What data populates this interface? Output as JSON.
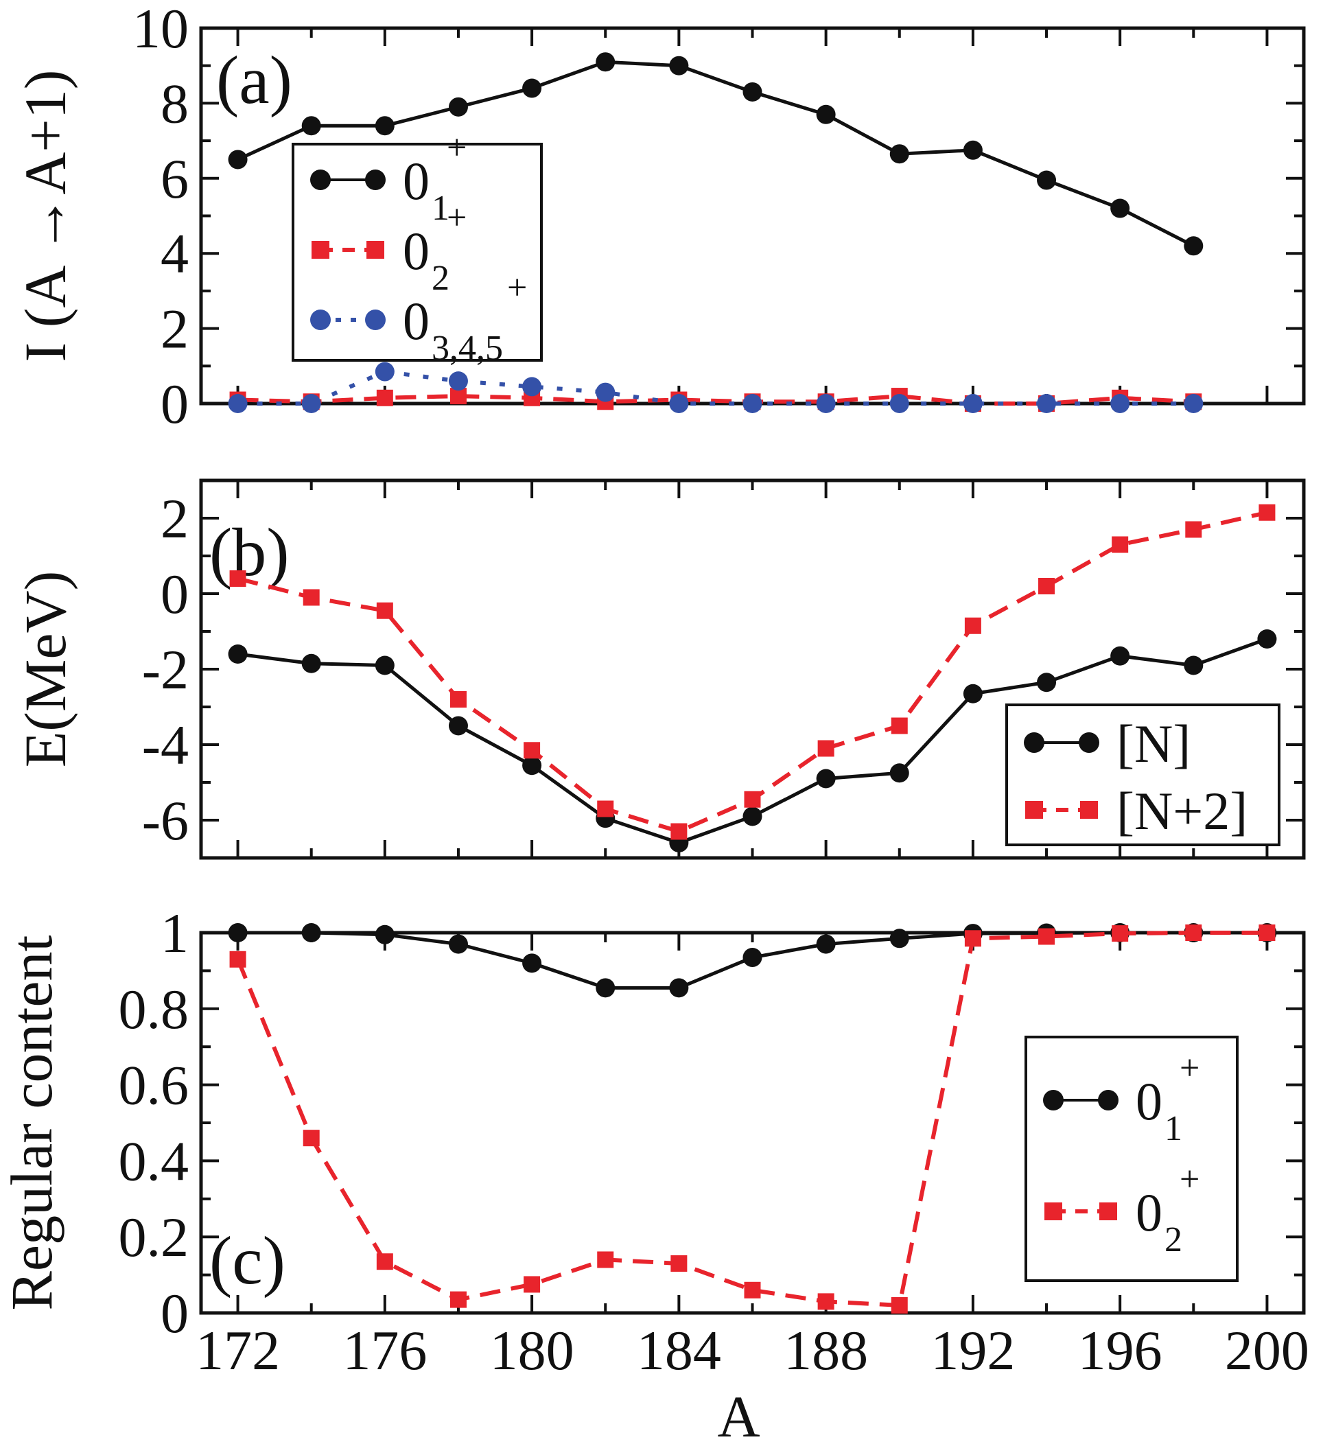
{
  "chart_data": [
    {
      "id": "a",
      "type": "line",
      "panel_label": "(a)",
      "title": "",
      "xlabel": "",
      "ylabel": "I (A →A+1)",
      "x": [
        172,
        174,
        176,
        178,
        180,
        182,
        184,
        186,
        188,
        190,
        192,
        194,
        196,
        198
      ],
      "xlim": [
        171,
        201
      ],
      "ylim": [
        0,
        10
      ],
      "yticks": [
        0,
        2,
        4,
        6,
        8,
        10
      ],
      "yticklabels": [
        "0",
        "2",
        "4",
        "6",
        "8",
        "10"
      ],
      "yminor": [
        1,
        3,
        5,
        7,
        9
      ],
      "grid": false,
      "legend_position": "upper-left-inner",
      "series": [
        {
          "name": "0_1^+",
          "label_main": "0",
          "label_sub": "1",
          "label_sup": "+",
          "color": "#111111",
          "marker": "circle",
          "line": "solid",
          "values": [
            6.5,
            7.4,
            7.4,
            7.9,
            8.4,
            9.1,
            9.0,
            8.3,
            7.7,
            6.65,
            6.75,
            5.95,
            5.2,
            4.2
          ]
        },
        {
          "name": "0_2^+",
          "label_main": "0",
          "label_sub": "2",
          "label_sup": "+",
          "color": "#e8242c",
          "marker": "square",
          "line": "dashed",
          "values": [
            0.1,
            0.05,
            0.15,
            0.2,
            0.15,
            0.05,
            0.1,
            0.05,
            0.05,
            0.2,
            0.0,
            0.0,
            0.15,
            0.05
          ]
        },
        {
          "name": "0_3,4,5^+",
          "label_main": "0",
          "label_sub": "3,4,5",
          "label_sup": "+",
          "color": "#3451a8",
          "marker": "circle",
          "line": "dotted",
          "values": [
            0.0,
            0.0,
            0.85,
            0.6,
            0.45,
            0.3,
            0.0,
            0.0,
            0.0,
            0.0,
            0.0,
            0.0,
            0.0,
            0.0
          ]
        }
      ]
    },
    {
      "id": "b",
      "type": "line",
      "panel_label": "(b)",
      "title": "",
      "xlabel": "",
      "ylabel": "E(MeV)",
      "x": [
        172,
        174,
        176,
        178,
        180,
        182,
        184,
        186,
        188,
        190,
        192,
        194,
        196,
        198,
        200
      ],
      "xlim": [
        171,
        201
      ],
      "ylim": [
        -7,
        3
      ],
      "yticks": [
        -6,
        -4,
        -2,
        0,
        2
      ],
      "yticklabels": [
        "-6",
        "-4",
        "-2",
        "0",
        "2"
      ],
      "yminor": [
        -7,
        -5,
        -3,
        -1,
        1,
        3
      ],
      "grid": false,
      "legend_position": "lower-right-inner",
      "series": [
        {
          "name": "[N]",
          "label_main": "[N]",
          "color": "#111111",
          "marker": "circle",
          "line": "solid",
          "values": [
            -1.6,
            -1.85,
            -1.9,
            -3.5,
            -4.55,
            -5.95,
            -6.6,
            -5.9,
            -4.9,
            -4.75,
            -2.65,
            -2.35,
            -1.65,
            -1.9,
            -1.2
          ]
        },
        {
          "name": "[N+2]",
          "label_main": "[N+2]",
          "color": "#e8242c",
          "marker": "square",
          "line": "dashed",
          "values": [
            0.4,
            -0.1,
            -0.45,
            -2.8,
            -4.15,
            -5.7,
            -6.3,
            -5.45,
            -4.1,
            -3.5,
            -0.85,
            0.2,
            1.3,
            1.7,
            2.15
          ]
        }
      ]
    },
    {
      "id": "c",
      "type": "line",
      "panel_label": "(c)",
      "title": "",
      "xlabel": "A",
      "ylabel": "Regular content",
      "x": [
        172,
        174,
        176,
        178,
        180,
        182,
        184,
        186,
        188,
        190,
        192,
        194,
        196,
        198,
        200
      ],
      "xlim": [
        171,
        201
      ],
      "xticks": [
        172,
        176,
        180,
        184,
        188,
        192,
        196,
        200
      ],
      "xticklabels": [
        "172",
        "176",
        "180",
        "184",
        "188",
        "192",
        "196",
        "200"
      ],
      "ylim": [
        0,
        1
      ],
      "yticks": [
        0,
        0.2,
        0.4,
        0.6,
        0.8,
        1
      ],
      "yticklabels": [
        "0",
        "0.2",
        "0.4",
        "0.6",
        "0.8",
        "1"
      ],
      "yminor": [
        0.1,
        0.3,
        0.5,
        0.7,
        0.9
      ],
      "grid": false,
      "legend_position": "center-right-inner",
      "series": [
        {
          "name": "0_1^+",
          "label_main": "0",
          "label_sub": "1",
          "label_sup": "+",
          "color": "#111111",
          "marker": "circle",
          "line": "solid",
          "values": [
            1.0,
            1.0,
            0.995,
            0.97,
            0.92,
            0.855,
            0.855,
            0.935,
            0.97,
            0.985,
            0.998,
            0.999,
            1.0,
            1.0,
            1.0
          ]
        },
        {
          "name": "0_2^+",
          "label_main": "0",
          "label_sub": "2",
          "label_sup": "+",
          "color": "#e8242c",
          "marker": "square",
          "line": "dashed",
          "values": [
            0.93,
            0.46,
            0.135,
            0.035,
            0.075,
            0.14,
            0.13,
            0.06,
            0.03,
            0.02,
            0.985,
            0.99,
            0.998,
            1.0,
            1.0
          ]
        }
      ]
    }
  ]
}
